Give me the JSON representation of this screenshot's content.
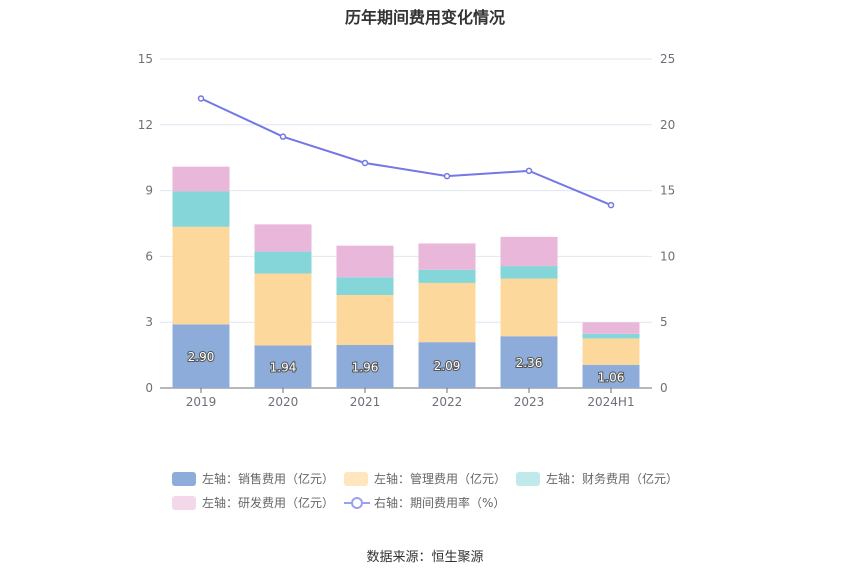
{
  "title": "历年期间费用变化情况",
  "source": "数据来源：恒生聚源",
  "chart_data": {
    "type": "bar",
    "stacked": true,
    "categories": [
      "2019",
      "2020",
      "2021",
      "2022",
      "2023",
      "2024H1"
    ],
    "series": [
      {
        "name": "左轴：销售费用（亿元）",
        "axis": "left",
        "color": "#8eacd9",
        "values": [
          2.9,
          1.94,
          1.96,
          2.09,
          2.36,
          1.06
        ],
        "labels": [
          "2.90",
          "1.94",
          "1.96",
          "2.09",
          "2.36",
          "1.06"
        ]
      },
      {
        "name": "左轴：管理费用（亿元）",
        "axis": "left",
        "color": "#fdd89c",
        "values": [
          4.45,
          3.28,
          2.28,
          2.7,
          2.63,
          1.2
        ]
      },
      {
        "name": "左轴：财务费用（亿元）",
        "axis": "left",
        "color": "#85d6d9",
        "values": [
          1.61,
          1.0,
          0.81,
          0.6,
          0.57,
          0.21
        ]
      },
      {
        "name": "左轴：研发费用（亿元）",
        "axis": "left",
        "color": "#e8b7d9",
        "values": [
          1.13,
          1.24,
          1.44,
          1.2,
          1.33,
          0.52
        ]
      },
      {
        "name": "右轴：期间费用率（%）",
        "axis": "right",
        "type": "line",
        "color": "#7378e6",
        "values": [
          22.0,
          19.1,
          17.1,
          16.1,
          16.5,
          13.9
        ]
      }
    ],
    "y_left": {
      "ticks": [
        "0",
        "3",
        "6",
        "9",
        "12",
        "15"
      ],
      "range": [
        0,
        15
      ]
    },
    "y_right": {
      "ticks": [
        "0",
        "5",
        "10",
        "15",
        "20",
        "25"
      ],
      "range": [
        0,
        25
      ]
    },
    "grid": true,
    "legend_position": "bottom"
  }
}
